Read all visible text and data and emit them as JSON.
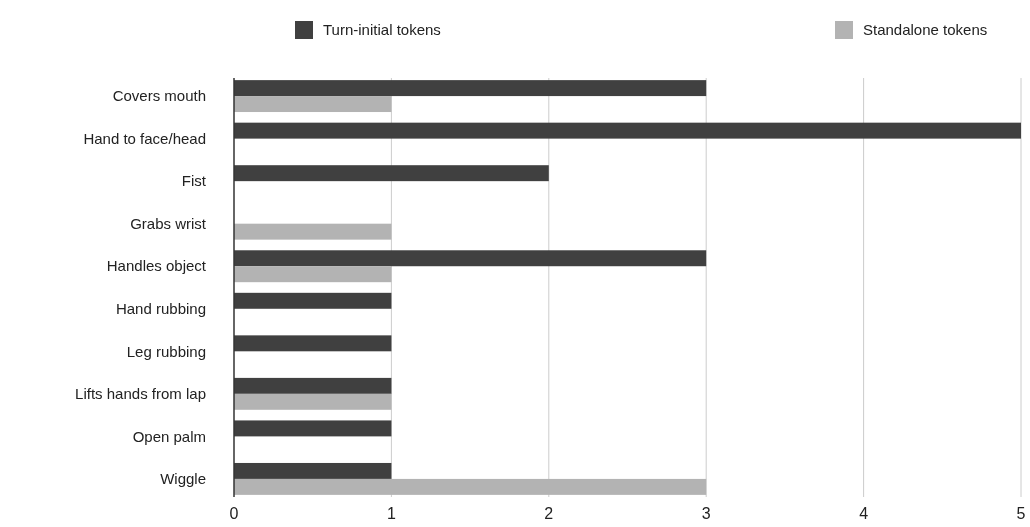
{
  "chart_data": {
    "type": "bar",
    "orientation": "horizontal",
    "categories": [
      "Covers mouth",
      "Hand to face/head",
      "Fist",
      "Grabs wrist",
      "Handles object",
      "Hand rubbing",
      "Leg rubbing",
      "Lifts hands from lap",
      "Open palm",
      "Wiggle"
    ],
    "series": [
      {
        "name": "Turn-initial tokens",
        "color": "#404040",
        "values": [
          3,
          5,
          2,
          0,
          3,
          1,
          1,
          1,
          1,
          1
        ]
      },
      {
        "name": "Standalone tokens",
        "color": "#b3b3b3",
        "values": [
          1,
          0,
          0,
          1,
          1,
          0,
          0,
          1,
          0,
          3
        ]
      }
    ],
    "xlim": [
      0,
      5
    ],
    "xticks": [
      0,
      1,
      2,
      3,
      4,
      5
    ],
    "grid": "x",
    "legend": "top"
  }
}
